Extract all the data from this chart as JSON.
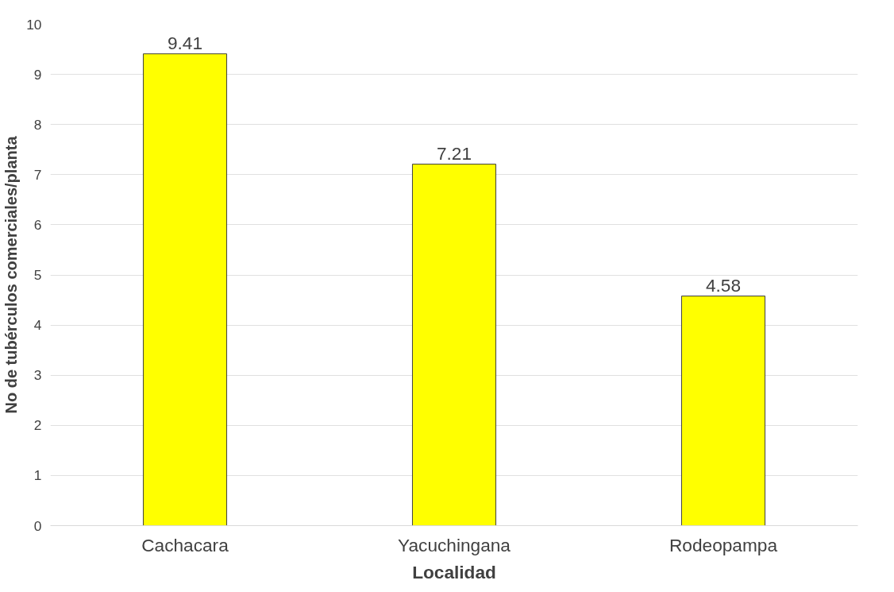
{
  "chart_data": {
    "type": "bar",
    "xlabel": "Localidad",
    "ylabel": "No de tubérculos comerciales/planta",
    "categories": [
      "Cachacara",
      "Yacuchingana",
      "Rodeopampa"
    ],
    "values": [
      9.41,
      7.21,
      4.58
    ],
    "color": "#ffff00",
    "ylim": [
      0,
      10
    ],
    "yticks": [
      0,
      1,
      2,
      3,
      4,
      5,
      6,
      7,
      8,
      9,
      10
    ],
    "grid": "y",
    "data_labels": true
  }
}
